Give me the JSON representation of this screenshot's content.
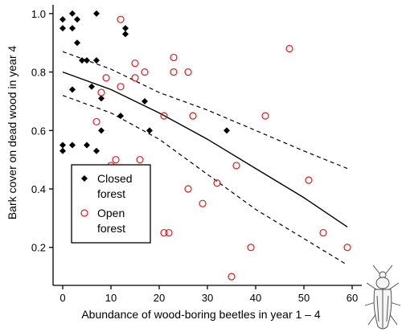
{
  "chart_data": {
    "type": "scatter",
    "title": "",
    "xlabel": "Abundance of wood-boring beetles in year 1 – 4",
    "ylabel": "Bark cover on dead wood in year 4",
    "xlim": [
      -2,
      62
    ],
    "ylim": [
      0.07,
      1.03
    ],
    "x_ticks": [
      0,
      10,
      20,
      30,
      40,
      50,
      60
    ],
    "y_ticks": [
      0.2,
      0.4,
      0.6,
      0.8,
      1.0
    ],
    "x_tick_labels": [
      "0",
      "10",
      "20",
      "30",
      "40",
      "50",
      "60"
    ],
    "y_tick_labels": [
      "0.2",
      "0.4",
      "0.6",
      "0.8",
      "1.0"
    ],
    "grid": false,
    "legend": {
      "placement": "bottom-left",
      "entries": [
        {
          "series": "closed",
          "marker": "filled-diamond",
          "lines": [
            "Closed",
            "forest"
          ]
        },
        {
          "series": "open",
          "marker": "open-circle",
          "lines": [
            "Open",
            "forest"
          ]
        }
      ]
    },
    "series": [
      {
        "key": "closed",
        "name": "Closed forest",
        "marker": "filled-diamond",
        "color": "#000000",
        "points": [
          [
            0,
            0.98
          ],
          [
            0,
            0.95
          ],
          [
            2,
            1.0
          ],
          [
            2,
            0.95
          ],
          [
            3,
            0.98
          ],
          [
            3,
            0.9
          ],
          [
            4,
            0.84
          ],
          [
            5,
            0.84
          ],
          [
            7,
            1.0
          ],
          [
            7,
            0.84
          ],
          [
            13,
            0.95
          ],
          [
            13,
            0.93
          ],
          [
            6,
            0.75
          ],
          [
            2,
            0.74
          ],
          [
            8,
            0.71
          ],
          [
            17,
            0.7
          ],
          [
            12,
            0.65
          ],
          [
            8,
            0.6
          ],
          [
            18,
            0.6
          ],
          [
            34,
            0.6
          ],
          [
            0,
            0.55
          ],
          [
            0,
            0.53
          ],
          [
            2,
            0.55
          ],
          [
            5,
            0.55
          ],
          [
            7,
            0.53
          ]
        ]
      },
      {
        "key": "open",
        "name": "Open forest",
        "marker": "open-circle",
        "color": "#e41a1c",
        "points": [
          [
            12,
            0.98
          ],
          [
            47,
            0.88
          ],
          [
            23,
            0.85
          ],
          [
            15,
            0.83
          ],
          [
            23,
            0.8
          ],
          [
            26,
            0.8
          ],
          [
            17,
            0.8
          ],
          [
            9,
            0.78
          ],
          [
            15,
            0.78
          ],
          [
            12,
            0.75
          ],
          [
            8,
            0.73
          ],
          [
            21,
            0.65
          ],
          [
            27,
            0.65
          ],
          [
            42,
            0.65
          ],
          [
            7,
            0.63
          ],
          [
            11,
            0.5
          ],
          [
            10,
            0.48
          ],
          [
            16,
            0.5
          ],
          [
            36,
            0.48
          ],
          [
            51,
            0.43
          ],
          [
            32,
            0.42
          ],
          [
            26,
            0.4
          ],
          [
            29,
            0.35
          ],
          [
            21,
            0.25
          ],
          [
            22,
            0.25
          ],
          [
            54,
            0.25
          ],
          [
            39,
            0.2
          ],
          [
            59,
            0.2
          ],
          [
            35,
            0.1
          ]
        ]
      }
    ],
    "fit": {
      "x": [
        0,
        10,
        20,
        30,
        40,
        50,
        59
      ],
      "y": [
        0.8,
        0.74,
        0.66,
        0.57,
        0.47,
        0.37,
        0.27
      ],
      "lower": [
        0.72,
        0.66,
        0.57,
        0.45,
        0.33,
        0.23,
        0.14
      ],
      "upper": [
        0.87,
        0.81,
        0.73,
        0.67,
        0.6,
        0.53,
        0.47
      ]
    }
  }
}
